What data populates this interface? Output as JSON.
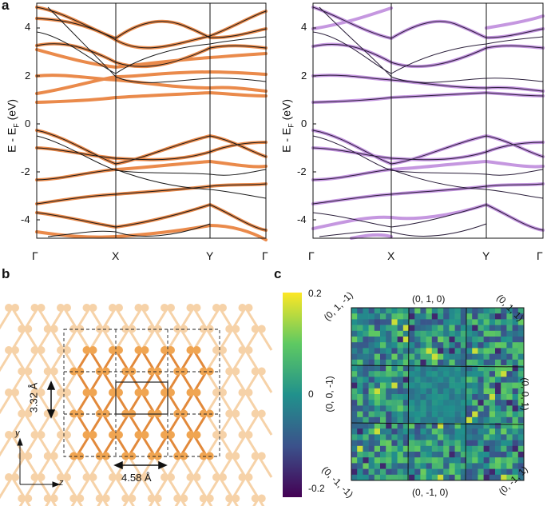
{
  "panels": {
    "a": "a",
    "b": "b",
    "c": "c"
  },
  "band_plot": {
    "ylabel": "E - E",
    "ylabel_sub": "F",
    "ylabel_unit": " (eV)",
    "yticks": [
      "4",
      "2",
      "0",
      "-2",
      "-4"
    ],
    "kpoints": [
      "Γ",
      "X",
      "Y",
      "Γ"
    ],
    "left_highlight_color": "#ea8a4b",
    "right_highlight_color": "#c597e0",
    "black_line_color": "#1a1a1a",
    "right_dark_color": "#3d2a52"
  },
  "structure": {
    "lattice_a": "3.32 Å",
    "lattice_b": "4.58 Å",
    "axis_y": "y",
    "axis_z": "z",
    "atom_color": "#f0a552",
    "atom_light_color": "#f6d2a8"
  },
  "colorbar": {
    "ticks": [
      "0.2",
      "0",
      "-0.2"
    ],
    "top_color": "#fde725",
    "mid_color": "#21918c",
    "bottom_color": "#440154"
  },
  "matrix": {
    "top_label": "(0,  1,  0)",
    "bottom_label": "(0, -1,  0)",
    "top_left": "(0,  1, -1)",
    "top_right": "(0,  1,  1)",
    "left_mid": "(0,  0, -1)",
    "right_mid": "(0,  0,  1)",
    "bottom_left": "(0, -1, -1)",
    "bottom_right": "(0, -1,  1)"
  },
  "chart_data": [
    {
      "type": "line",
      "title": "",
      "xlabel": "",
      "ylabel": "E - EF (eV)",
      "x_ticks": [
        "Γ",
        "X",
        "Y",
        "Γ"
      ],
      "ylim": [
        -5,
        5
      ],
      "series": [
        {
          "name": "reference bands (black)",
          "values": []
        },
        {
          "name": "fitted bands (orange)",
          "values": []
        }
      ]
    },
    {
      "type": "line",
      "title": "",
      "xlabel": "",
      "ylabel": "E - EF (eV)",
      "x_ticks": [
        "Γ",
        "X",
        "Y",
        "Γ"
      ],
      "ylim": [
        -5,
        5
      ],
      "series": [
        {
          "name": "reference bands (black)",
          "values": []
        },
        {
          "name": "fitted bands (purple)",
          "values": []
        }
      ]
    },
    {
      "type": "heatmap",
      "title": "",
      "colorbar_range": [
        -0.2,
        0.2
      ],
      "grid_blocks": [
        3,
        3
      ]
    }
  ]
}
